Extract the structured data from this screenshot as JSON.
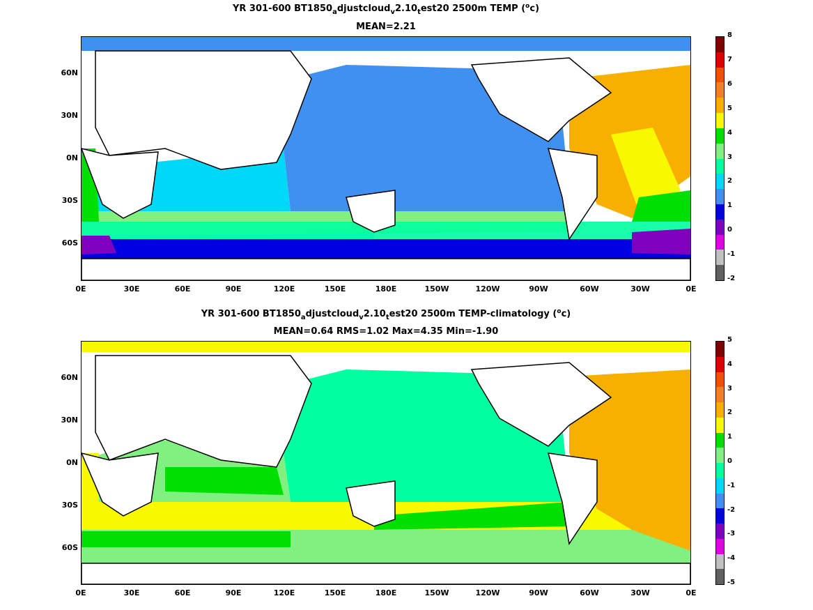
{
  "panel1": {
    "title_parts": [
      "YR 301-600 BT1850",
      "a",
      "djustcloud",
      "v",
      "2.10",
      "t",
      "est20 2500m TEMP (",
      "o",
      "c)"
    ],
    "stats": "MEAN=2.21",
    "colorbar_labels": [
      "8",
      "7",
      "6",
      "5",
      "4",
      "3",
      "2",
      "1",
      "0",
      "-1",
      "-2"
    ],
    "colorbar_colors": [
      "#800000",
      "#e00000",
      "#f05000",
      "#f08020",
      "#f8b000",
      "#f8f800",
      "#00e000",
      "#80f080",
      "#00ffa0",
      "#00d8f8",
      "#4090f0",
      "#0000e0",
      "#8000c0",
      "#e000e0",
      "#c0c0c0",
      "#606060"
    ]
  },
  "panel2": {
    "title_parts": [
      "YR 301-600 BT1850",
      "a",
      "djustcloud",
      "v",
      "2.10",
      "t",
      "est20 2500m TEMP-climatology (",
      "o",
      "c)"
    ],
    "stats": "MEAN=0.64   RMS=1.02   Max=4.35   Min=-1.90",
    "colorbar_labels": [
      "5",
      "4",
      "3",
      "2",
      "1",
      "0",
      "-1",
      "-2",
      "-3",
      "-4",
      "-5"
    ],
    "colorbar_colors": [
      "#800000",
      "#e00000",
      "#f05000",
      "#f08020",
      "#f8b000",
      "#f8f800",
      "#00e000",
      "#80f080",
      "#00ffa0",
      "#00d8f8",
      "#4090f0",
      "#0000e0",
      "#8000c0",
      "#e000e0",
      "#c0c0c0",
      "#606060"
    ]
  },
  "axes": {
    "y_labels": [
      "60N",
      "30N",
      "0N",
      "30S",
      "60S"
    ],
    "x_labels": [
      "0E",
      "30E",
      "60E",
      "90E",
      "120E",
      "150E",
      "180E",
      "150W",
      "120W",
      "90W",
      "60W",
      "30W",
      "0E"
    ]
  }
}
